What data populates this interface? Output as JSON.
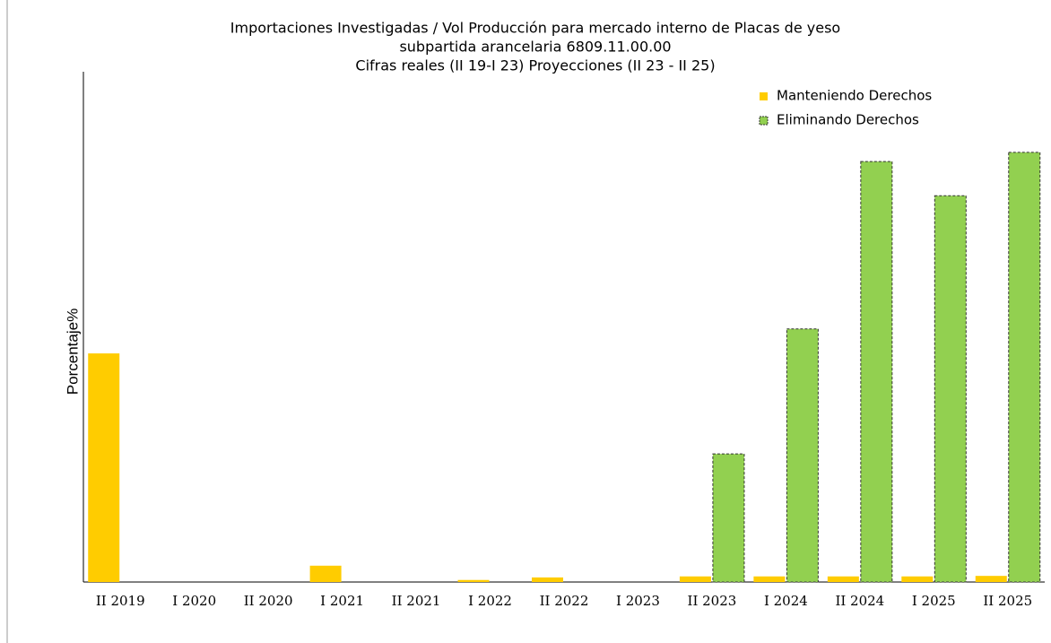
{
  "chart_data": {
    "type": "bar",
    "title": [
      "Importaciones Investigadas / Vol Producción para mercado interno de Placas de yeso",
      "subpartida arancelaria  6809.11.00.00",
      "Cifras reales (II 19-I 23) Proyecciones (II 23 - II 25)"
    ],
    "y_label": "Porcentaje%",
    "categories": [
      "II 2019",
      "I 2020",
      "II 2020",
      "I 2021",
      "II 2021",
      "I 2022",
      "II 2022",
      "I 2023",
      "II 2023",
      "I 2024",
      "II 2024",
      "I 2025",
      "II 2025"
    ],
    "series": [
      {
        "name": "Manteniendo Derechos",
        "color": "#ffcc00",
        "values": [
          44.8,
          0,
          0,
          3.2,
          0,
          0.4,
          0.9,
          0,
          1.1,
          1.1,
          1.1,
          1.1,
          1.2
        ]
      },
      {
        "name": "Eliminando Derechos",
        "color": "#92d050",
        "values": [
          null,
          null,
          null,
          null,
          null,
          null,
          null,
          null,
          25.1,
          49.6,
          82.4,
          75.7,
          84.2
        ]
      }
    ],
    "ylim": [
      0,
      100
    ],
    "legend": "top-right"
  }
}
